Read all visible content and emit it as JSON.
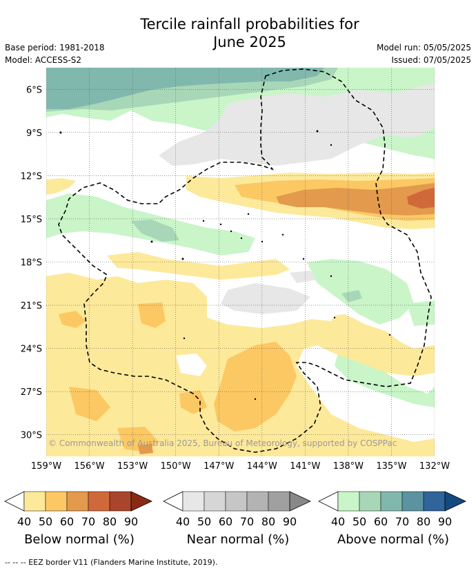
{
  "title_line1": "Tercile rainfall probabilities for",
  "title_line2": "June 2025",
  "base_period": "Base period: 1981-2018",
  "model": "Model: ACCESS-S2",
  "model_run": "Model run: 05/05/2025",
  "issued": "Issued: 07/05/2025",
  "copyright": "© Commonwealth of Australia 2025, Bureau of Meteorology, supported by COSPPac",
  "footer": "-- -- -- EEZ border V11 (Flanders Marine Institute, 2019).",
  "map": {
    "lon_ticks": [
      "159°W",
      "156°W",
      "153°W",
      "150°W",
      "147°W",
      "144°W",
      "141°W",
      "138°W",
      "135°W",
      "132°W"
    ],
    "lat_ticks": [
      "6°S",
      "9°S",
      "12°S",
      "15°S",
      "18°S",
      "21°S",
      "24°S",
      "27°S",
      "30°S"
    ],
    "lon_values": [
      -159,
      -156,
      -153,
      -150,
      -147,
      -144,
      -141,
      -138,
      -135,
      -132
    ],
    "lat_values": [
      -6,
      -9,
      -12,
      -15,
      -18,
      -21,
      -24,
      -27,
      -30
    ],
    "extent": {
      "lon_min": -159,
      "lon_max": -132,
      "lat_min": -31.5,
      "lat_max": -4.5
    }
  },
  "colorbars": [
    {
      "label": "Below normal (%)",
      "ticks": [
        "40",
        "50",
        "60",
        "70",
        "80",
        "90"
      ],
      "colors": [
        "#fde99a",
        "#fcc863",
        "#e39a4c",
        "#d0693a",
        "#a9452a",
        "#8a2a14"
      ]
    },
    {
      "label": "Near normal (%)",
      "ticks": [
        "40",
        "50",
        "60",
        "70",
        "80",
        "90"
      ],
      "colors": [
        "#e7e7e7",
        "#d6d6d6",
        "#c6c6c6",
        "#b3b3b3",
        "#a0a0a0",
        "#888888"
      ]
    },
    {
      "label": "Above normal (%)",
      "ticks": [
        "40",
        "50",
        "60",
        "70",
        "80",
        "90"
      ],
      "colors": [
        "#c9f5c9",
        "#a8d7b8",
        "#81b8ae",
        "#5c93a0",
        "#30649a",
        "#134a80"
      ]
    }
  ]
}
